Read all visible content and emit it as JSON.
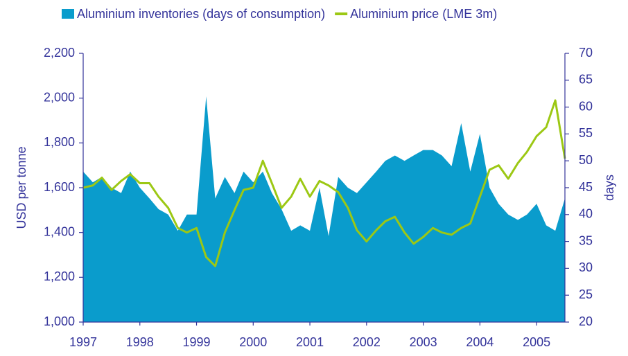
{
  "chart_data": {
    "type": "area-line",
    "y_label": "USD per tonne",
    "y2_label": "days",
    "x": [
      1997.0,
      1997.17,
      1997.33,
      1997.5,
      1997.67,
      1997.83,
      1998.0,
      1998.17,
      1998.33,
      1998.5,
      1998.67,
      1998.83,
      1999.0,
      1999.17,
      1999.33,
      1999.5,
      1999.67,
      1999.83,
      2000.0,
      2000.17,
      2000.33,
      2000.5,
      2000.67,
      2000.83,
      2001.0,
      2001.17,
      2001.33,
      2001.5,
      2001.67,
      2001.83,
      2002.0,
      2002.17,
      2002.33,
      2002.5,
      2002.67,
      2002.83,
      2003.0,
      2003.17,
      2003.33,
      2003.5,
      2003.67,
      2003.83,
      2004.0,
      2004.17,
      2004.33,
      2004.5,
      2004.67,
      2004.83,
      2005.0,
      2005.17,
      2005.33,
      2005.5
    ],
    "series": [
      {
        "name": "Aluminium inventories (days of consumption)",
        "color": "#0a9ccc",
        "axis": "y2",
        "kind": "area",
        "values": [
          48,
          46,
          47,
          45,
          44,
          48,
          45,
          43,
          41,
          40,
          37,
          40,
          40,
          62,
          43,
          47,
          44,
          48,
          46,
          48,
          44,
          41,
          37,
          38,
          37,
          45,
          36,
          47,
          45,
          44,
          46,
          48,
          50,
          51,
          50,
          51,
          52,
          52,
          51,
          49,
          57,
          48,
          55,
          45,
          42,
          40,
          39,
          40,
          42,
          38,
          37,
          43
        ]
      },
      {
        "name": "Aluminium price (LME 3m)",
        "color": "#9cc814",
        "kind": "line",
        "values": [
          1600,
          1610,
          1645,
          1590,
          1630,
          1660,
          1620,
          1620,
          1560,
          1510,
          1420,
          1400,
          1420,
          1290,
          1250,
          1400,
          1500,
          1590,
          1600,
          1720,
          1620,
          1510,
          1560,
          1640,
          1560,
          1630,
          1610,
          1580,
          1510,
          1410,
          1360,
          1410,
          1450,
          1470,
          1400,
          1350,
          1380,
          1420,
          1400,
          1390,
          1420,
          1440,
          1560,
          1680,
          1700,
          1640,
          1710,
          1760,
          1830,
          1870,
          1990,
          1730
        ]
      }
    ],
    "xlim": [
      1997,
      2005.5
    ],
    "xticks": [
      1997,
      1998,
      1999,
      2000,
      2001,
      2002,
      2003,
      2004,
      2005
    ],
    "ylim": [
      1000,
      2200
    ],
    "yticks": [
      {
        "value": 1000,
        "label": "1,000"
      },
      {
        "value": 1200,
        "label": "1,200"
      },
      {
        "value": 1400,
        "label": "1,400"
      },
      {
        "value": 1600,
        "label": "1,600"
      },
      {
        "value": 1800,
        "label": "1,800"
      },
      {
        "value": 2000,
        "label": "2,000"
      },
      {
        "value": 2200,
        "label": "2,200"
      }
    ],
    "y2lim": [
      20,
      70
    ],
    "y2ticks": [
      20,
      25,
      30,
      35,
      40,
      45,
      50,
      55,
      60,
      65,
      70
    ],
    "legend": "top"
  }
}
